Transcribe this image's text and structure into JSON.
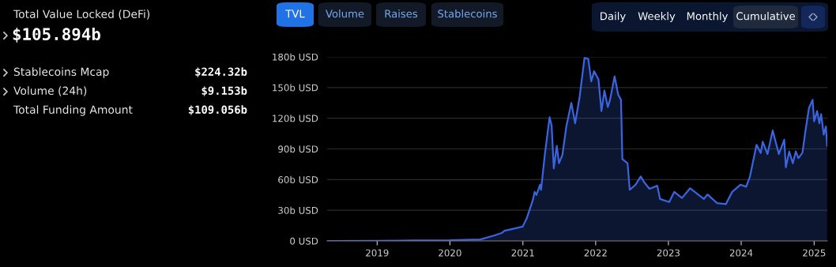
{
  "chart_data": [
    {
      "type": "other",
      "title": "Total Value Locked (DeFi)",
      "subtitle": "$105.894b",
      "annotations": [
        "Stablecoins Mcap",
        "$224.32b",
        "Volume (24h)",
        "$9.153b",
        "Total Funding Amount",
        "$109.056b"
      ]
    },
    {
      "type": "area",
      "color": "#3a64e0",
      "x": [
        "2018-04-25",
        "2019-01-01",
        "2019-07-01",
        "2020-01-01",
        "2020-06-01",
        "2020-08-08",
        "2020-09-16",
        "2020-10-01",
        "2020-12-31",
        "2021-01-20",
        "2021-02-20",
        "2021-03-01",
        "2021-03-10",
        "2021-03-28",
        "2021-04-02",
        "2021-04-22",
        "2021-05-15",
        "2021-05-25",
        "2021-06-05",
        "2021-06-20",
        "2021-07-01",
        "2021-07-18",
        "2021-08-07",
        "2021-09-01",
        "2021-09-20",
        "2021-10-12",
        "2021-11-06",
        "2021-11-25",
        "2021-12-10",
        "2021-12-24",
        "2022-01-15",
        "2022-01-30",
        "2022-02-14",
        "2022-03-03",
        "2022-03-14",
        "2022-04-06",
        "2022-04-24",
        "2022-05-08",
        "2022-05-15",
        "2022-06-10",
        "2022-06-21",
        "2022-07-20",
        "2022-08-15",
        "2022-09-03",
        "2022-09-28",
        "2022-11-06",
        "2022-11-20",
        "2023-01-05",
        "2023-01-30",
        "2023-03-10",
        "2023-04-20",
        "2023-06-28",
        "2023-07-16",
        "2023-09-02",
        "2023-10-16",
        "2023-11-17",
        "2023-12-28",
        "2024-01-26",
        "2024-02-14",
        "2024-03-18",
        "2024-04-08",
        "2024-04-18",
        "2024-05-12",
        "2024-06-07",
        "2024-07-08",
        "2024-08-04",
        "2024-08-12",
        "2024-08-29",
        "2024-09-16",
        "2024-10-01",
        "2024-10-14",
        "2024-11-03",
        "2024-11-18",
        "2024-12-06",
        "2024-12-24",
        "2025-01-01",
        "2025-01-16",
        "2025-01-27",
        "2025-02-05",
        "2025-02-18",
        "2025-03-01",
        "2025-03-07"
      ],
      "values": [
        0,
        0.2,
        0.4,
        0.6,
        1.5,
        5.2,
        7.7,
        10,
        14,
        22,
        40,
        48,
        45,
        55,
        50,
        86,
        121,
        113,
        71,
        93,
        76,
        84,
        112,
        135,
        115,
        140,
        179,
        178,
        156,
        166,
        158,
        127,
        147,
        131,
        138,
        161,
        143,
        138,
        80,
        76,
        50,
        55,
        63,
        57,
        51,
        54,
        41,
        38,
        48,
        42,
        51.5,
        41,
        45.5,
        37,
        36,
        48,
        55,
        53,
        63,
        94,
        86,
        97,
        85,
        108,
        85,
        99,
        72,
        87.5,
        76,
        87.5,
        81,
        86,
        107,
        130,
        138,
        117,
        127,
        115,
        124,
        104,
        112,
        93
      ],
      "xlim": [
        "2018-04-25",
        "2025-03-08"
      ],
      "xticks": [
        {
          "value": "2019-01-01",
          "label": "2019"
        },
        {
          "value": "2020-01-01",
          "label": "2020"
        },
        {
          "value": "2021-01-01",
          "label": "2021"
        },
        {
          "value": "2022-01-01",
          "label": "2022"
        },
        {
          "value": "2023-01-01",
          "label": "2023"
        },
        {
          "value": "2024-01-01",
          "label": "2024"
        },
        {
          "value": "2025-01-01",
          "label": "2025"
        }
      ],
      "ylim": [
        0,
        180
      ],
      "yticks": [
        {
          "value": 0,
          "label": "0 USD"
        },
        {
          "value": 30,
          "label": "30b USD"
        },
        {
          "value": 60,
          "label": "60b USD"
        },
        {
          "value": 90,
          "label": "90b USD"
        },
        {
          "value": 120,
          "label": "120b USD"
        },
        {
          "value": 150,
          "label": "150b USD"
        },
        {
          "value": 180,
          "label": "180b USD"
        }
      ],
      "grid": "y",
      "annotations": [
        "TVL",
        "Volume",
        "Raises",
        "Stablecoins",
        "Daily",
        "Weekly",
        "Monthly",
        "Cumulative"
      ]
    }
  ]
}
